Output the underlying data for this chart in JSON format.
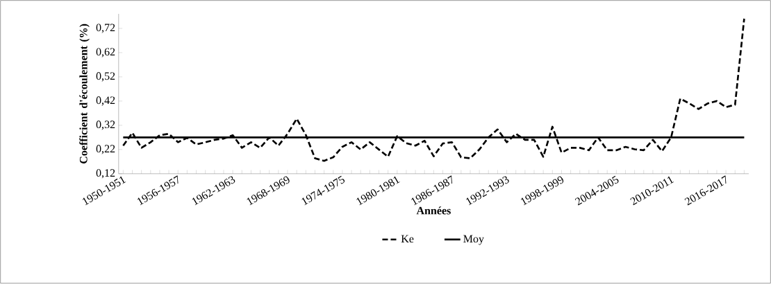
{
  "chart_data": {
    "type": "line",
    "xlabel": "Années",
    "ylabel": "Coefficient d'écoulement (%)",
    "categories": [
      "1950-1951",
      null,
      null,
      null,
      null,
      null,
      "1956-1957",
      null,
      null,
      null,
      null,
      null,
      "1962-1963",
      null,
      null,
      null,
      null,
      null,
      "1968-1969",
      null,
      null,
      null,
      null,
      null,
      "1974-1975",
      null,
      null,
      null,
      null,
      null,
      "1980-1981",
      null,
      null,
      null,
      null,
      null,
      "1986-1987",
      null,
      null,
      null,
      null,
      null,
      "1992-1993",
      null,
      null,
      null,
      null,
      null,
      "1998-1999",
      null,
      null,
      null,
      null,
      null,
      "2004-2005",
      null,
      null,
      null,
      null,
      null,
      "2010-2011",
      null,
      null,
      null,
      null,
      null,
      "2016-2017",
      null,
      null
    ],
    "series": [
      {
        "name": "Ke",
        "color": "#000000",
        "line_style": "dashed",
        "values": [
          0.236,
          0.289,
          0.227,
          0.25,
          0.279,
          0.285,
          0.25,
          0.268,
          0.241,
          0.25,
          0.26,
          0.265,
          0.279,
          0.227,
          0.25,
          0.227,
          0.27,
          0.236,
          0.285,
          0.347,
          0.28,
          0.184,
          0.173,
          0.188,
          0.231,
          0.25,
          0.22,
          0.25,
          0.22,
          0.19,
          0.275,
          0.246,
          0.236,
          0.256,
          0.192,
          0.245,
          0.25,
          0.188,
          0.184,
          0.22,
          0.27,
          0.303,
          0.25,
          0.285,
          0.26,
          0.26,
          0.19,
          0.314,
          0.207,
          0.227,
          0.227,
          0.217,
          0.27,
          0.217,
          0.217,
          0.231,
          0.221,
          0.217,
          0.26,
          0.213,
          0.27,
          0.43,
          0.41,
          0.387,
          0.41,
          0.42,
          0.395,
          0.405,
          0.76
        ]
      },
      {
        "name": "Moy",
        "color": "#000000",
        "line_style": "solid",
        "values": [
          0.27,
          0.27,
          0.27,
          0.27,
          0.27,
          0.27,
          0.27,
          0.27,
          0.27,
          0.27,
          0.27,
          0.27,
          0.27,
          0.27,
          0.27,
          0.27,
          0.27,
          0.27,
          0.27,
          0.27,
          0.27,
          0.27,
          0.27,
          0.27,
          0.27,
          0.27,
          0.27,
          0.27,
          0.27,
          0.27,
          0.27,
          0.27,
          0.27,
          0.27,
          0.27,
          0.27,
          0.27,
          0.27,
          0.27,
          0.27,
          0.27,
          0.27,
          0.27,
          0.27,
          0.27,
          0.27,
          0.27,
          0.27,
          0.27,
          0.27,
          0.27,
          0.27,
          0.27,
          0.27,
          0.27,
          0.27,
          0.27,
          0.27,
          0.27,
          0.27,
          0.27,
          0.27,
          0.27,
          0.27,
          0.27,
          0.27,
          0.27,
          0.27,
          0.27
        ]
      }
    ],
    "ylim": [
      0.12,
      0.78
    ],
    "yticks": [
      {
        "value": 0.12,
        "label": "0,12"
      },
      {
        "value": 0.22,
        "label": "0,22"
      },
      {
        "value": 0.32,
        "label": "0,32"
      },
      {
        "value": 0.42,
        "label": "0,42"
      },
      {
        "value": 0.52,
        "label": "0,52"
      },
      {
        "value": 0.62,
        "label": "0,62"
      },
      {
        "value": 0.72,
        "label": "0,72"
      }
    ],
    "grid": false,
    "legend": "bottom",
    "marker": "none"
  }
}
